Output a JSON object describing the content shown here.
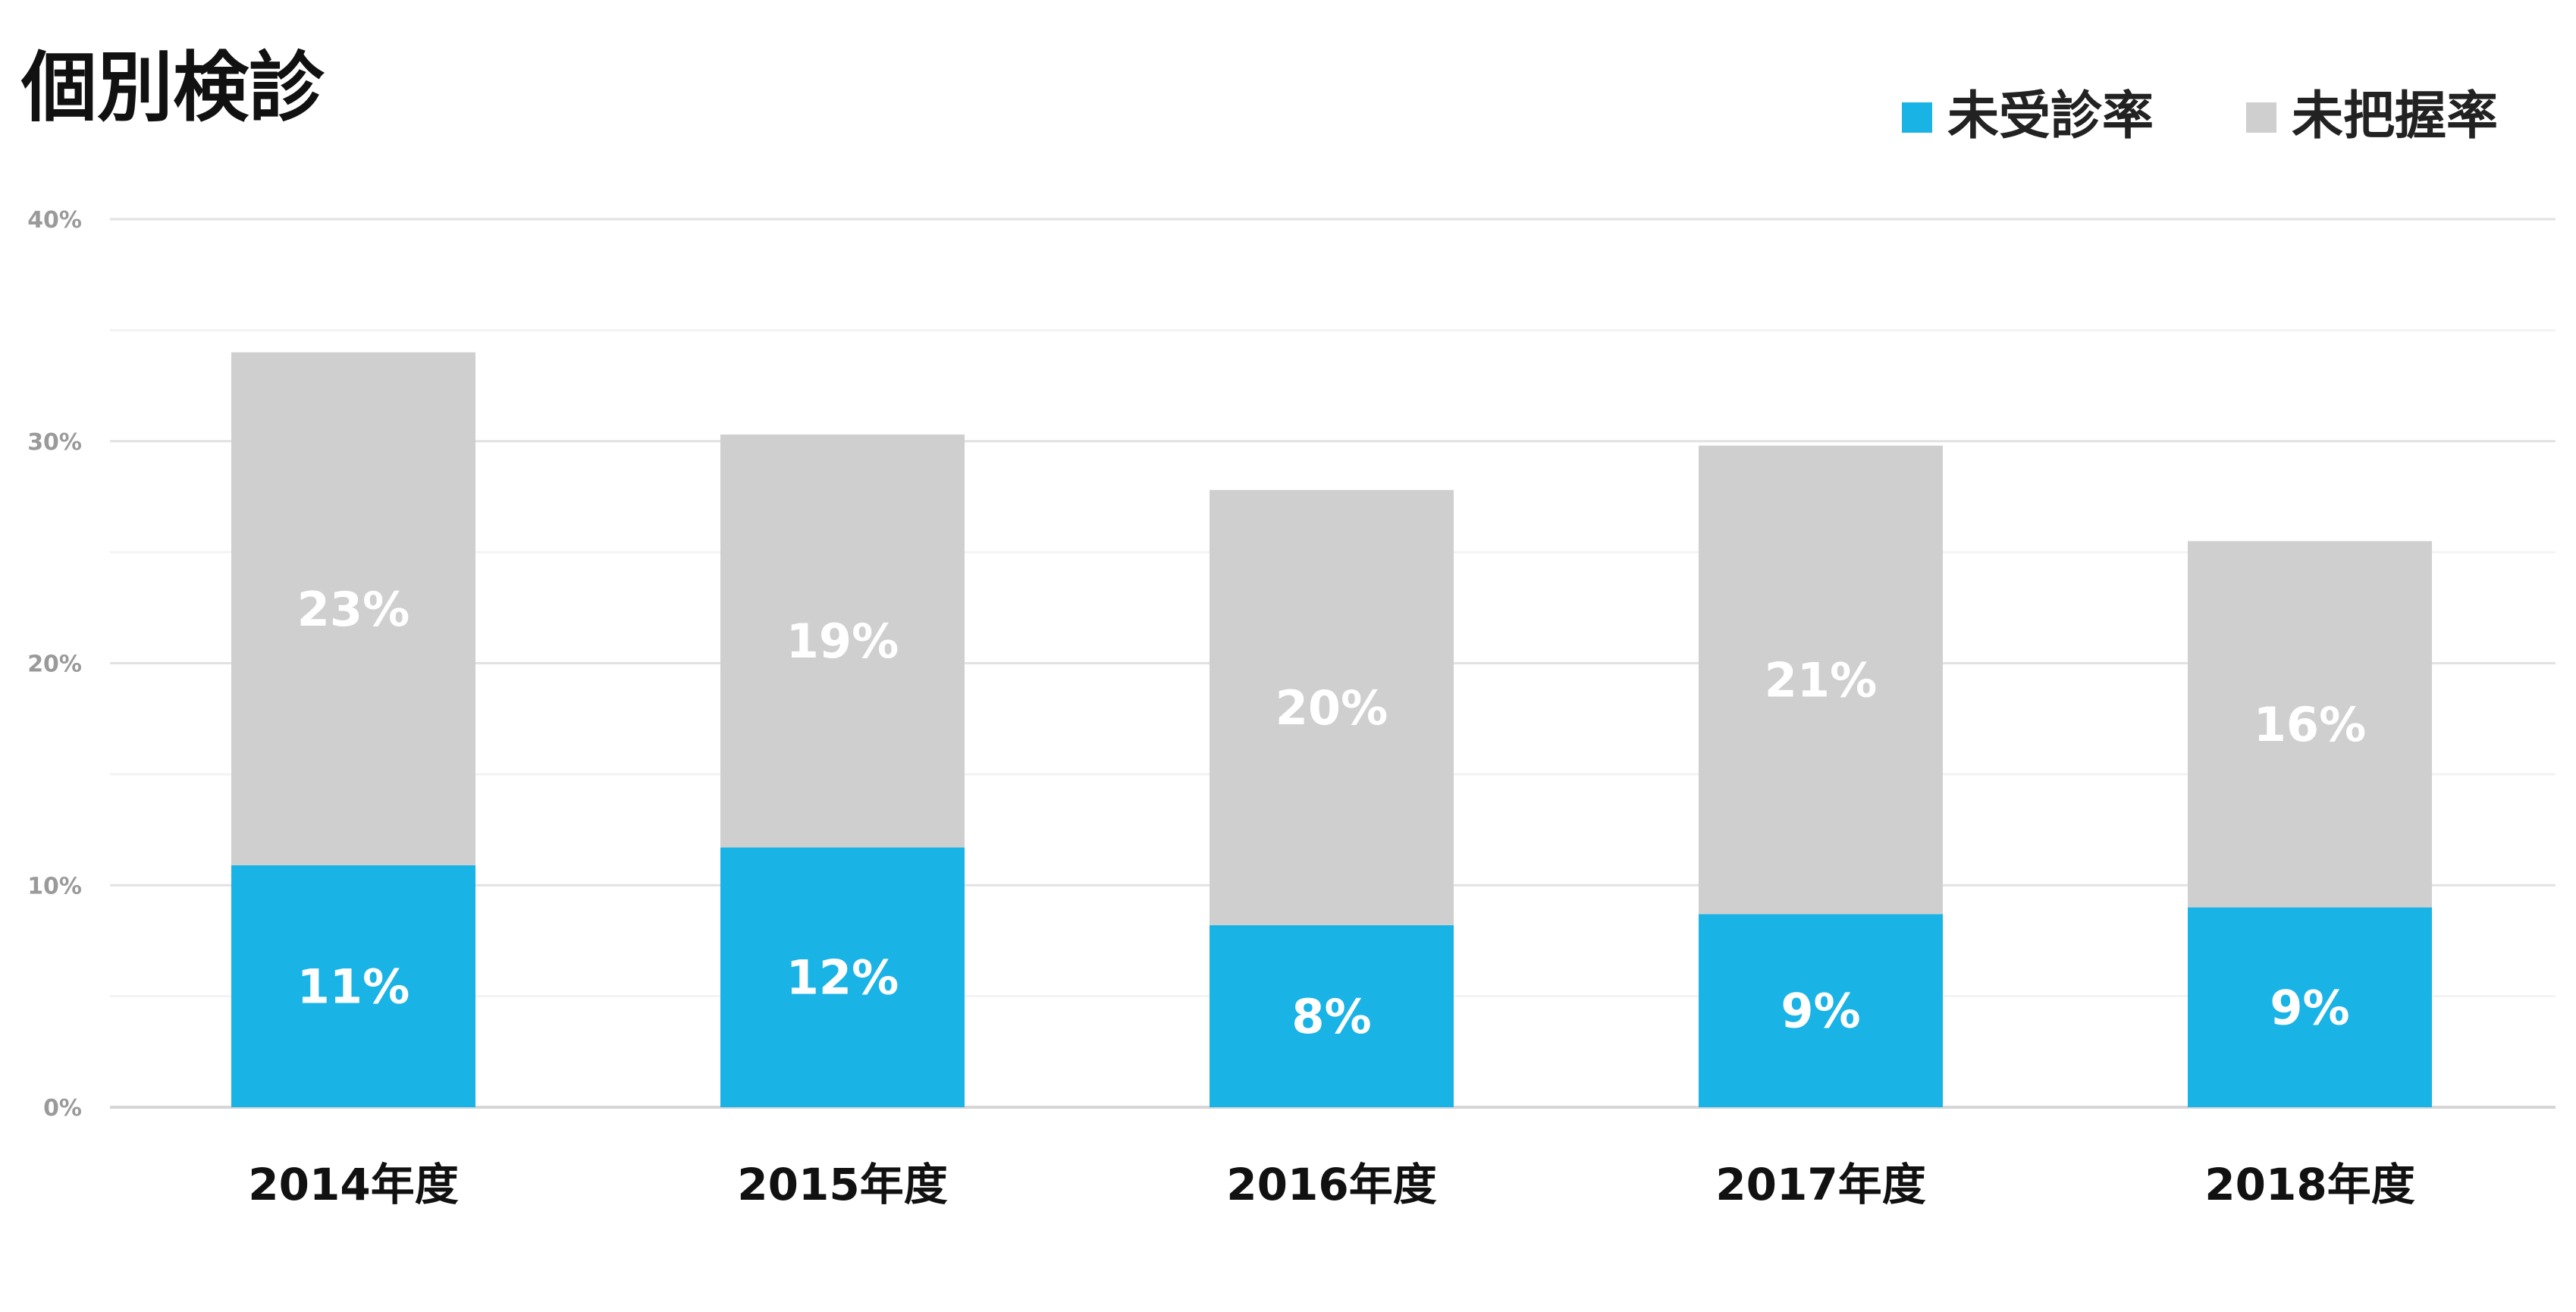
{
  "chart_data": {
    "type": "bar",
    "stacked": true,
    "title": "個別検診",
    "categories": [
      "2014年度",
      "2015年度",
      "2016年度",
      "2017年度",
      "2018年度"
    ],
    "series": [
      {
        "name": "未受診率",
        "color": "#1ab3e6",
        "values": [
          10.9,
          11.7,
          8.2,
          8.7,
          9.0
        ],
        "labels": [
          "11%",
          "12%",
          "8%",
          "9%",
          "9%"
        ]
      },
      {
        "name": "未把握率",
        "color": "#d0cfd0",
        "values": [
          23.1,
          18.6,
          19.6,
          21.1,
          16.5
        ],
        "labels": [
          "23%",
          "19%",
          "20%",
          "21%",
          "16%"
        ]
      }
    ],
    "ylim": [
      0,
      40
    ],
    "yticks": [
      {
        "value": 0,
        "label": "0%"
      },
      {
        "value": 10,
        "label": "10%"
      },
      {
        "value": 20,
        "label": "20%"
      },
      {
        "value": 30,
        "label": "30%"
      },
      {
        "value": 40,
        "label": "40%"
      }
    ],
    "minor_gridlines": [
      5,
      15,
      25,
      35
    ],
    "grid": true,
    "legend_position": "top-right",
    "xlabel": "",
    "ylabel": ""
  }
}
